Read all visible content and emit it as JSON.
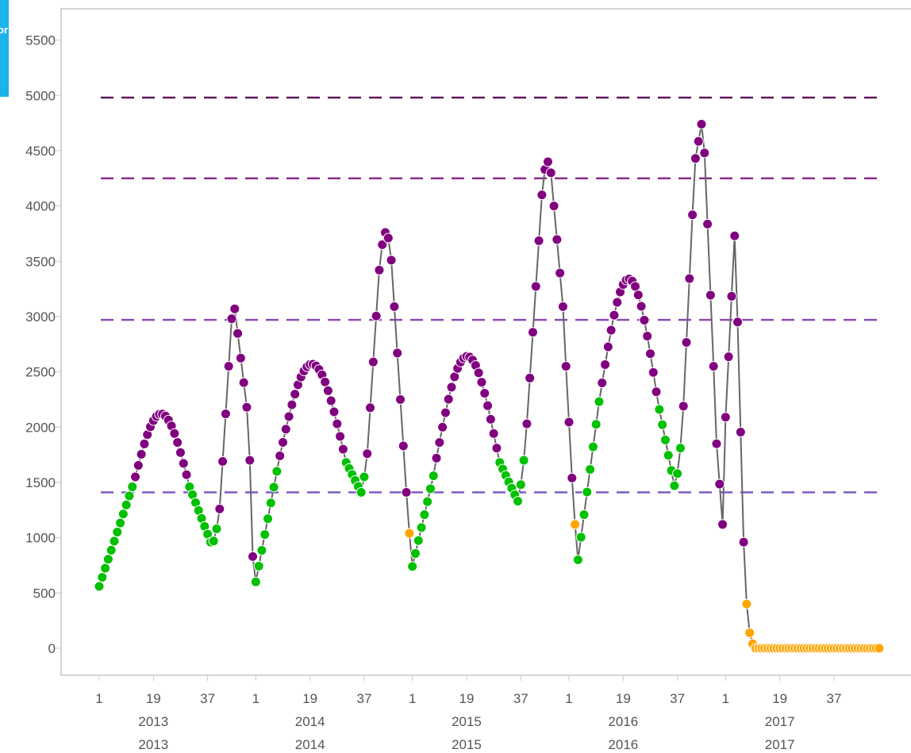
{
  "tab": {
    "text": "or"
  },
  "chart_data": {
    "type": "line",
    "title": "",
    "xlabel": "",
    "ylabel": "",
    "ylim": [
      -250,
      5750
    ],
    "y_ticks": [
      0,
      500,
      1000,
      1500,
      2000,
      2500,
      3000,
      3500,
      4000,
      4500,
      5000,
      5500
    ],
    "x_week_labels": [
      "1",
      "19",
      "37",
      "1",
      "19",
      "37",
      "1",
      "19",
      "37",
      "1",
      "19",
      "37",
      "1",
      "19",
      "37"
    ],
    "x_year_labels": [
      "2013",
      "2014",
      "2015",
      "2016",
      "2017"
    ],
    "years": [
      2013,
      2014,
      2015,
      2016,
      2017
    ],
    "weeks_per_year": 52,
    "threshold_lines": [
      {
        "value": 4980,
        "color": "#5c1a5c"
      },
      {
        "value": 4250,
        "color": "#8a2e8a"
      },
      {
        "value": 2970,
        "color": "#8d4bb0"
      },
      {
        "value": 1410,
        "color": "#7b5cc7"
      }
    ],
    "status_colors": {
      "green": "#00c000",
      "purple": "#800080",
      "orange": "#ffa500"
    },
    "line_color": "#666666",
    "segments": [
      {
        "from": 1,
        "to": 12,
        "y0": 560,
        "y1": 1460,
        "shape": "linear",
        "status": "green"
      },
      {
        "from": 13,
        "to": 30,
        "y0": 1550,
        "y1": 1570,
        "shape": "arc",
        "peak": 2120,
        "status": "purple"
      },
      {
        "from": 31,
        "to": 38,
        "y0": 1460,
        "y1": 960,
        "shape": "linear",
        "status": "green"
      },
      {
        "from": 39,
        "to": 40,
        "y0": 970,
        "y1": 1080,
        "shape": "linear",
        "status": "green"
      },
      {
        "from": 41,
        "to": 45,
        "y0": 1260,
        "y1": 2980,
        "shape": "linear",
        "status": "purple"
      },
      {
        "from": 46,
        "to": 50,
        "y0": 3070,
        "y1": 2180,
        "shape": "linear",
        "status": "purple"
      },
      {
        "from": 51,
        "to": 52,
        "y0": 1700,
        "y1": 830,
        "shape": "linear",
        "status": "purple"
      },
      {
        "from": 53,
        "to": 60,
        "y0": 600,
        "y1": 1600,
        "shape": "linear",
        "status": "green"
      },
      {
        "from": 61,
        "to": 82,
        "y0": 1740,
        "y1": 1800,
        "shape": "arc",
        "peak": 2570,
        "status": "purple"
      },
      {
        "from": 83,
        "to": 88,
        "y0": 1680,
        "y1": 1410,
        "shape": "linear",
        "status": "green"
      },
      {
        "from": 89,
        "to": 89,
        "y0": 1550,
        "y1": 1550,
        "shape": "linear",
        "status": "green"
      },
      {
        "from": 90,
        "to": 94,
        "y0": 1760,
        "y1": 3420,
        "shape": "linear",
        "status": "purple"
      },
      {
        "from": 95,
        "to": 97,
        "y0": 3650,
        "y1": 3710,
        "shape": "arc",
        "peak": 3760,
        "status": "purple"
      },
      {
        "from": 98,
        "to": 103,
        "y0": 3510,
        "y1": 1410,
        "shape": "linear",
        "status": "purple"
      },
      {
        "from": 104,
        "to": 104,
        "y0": 1040,
        "y1": 1040,
        "shape": "linear",
        "status": "orange"
      },
      {
        "from": 105,
        "to": 112,
        "y0": 740,
        "y1": 1560,
        "shape": "linear",
        "status": "green"
      },
      {
        "from": 113,
        "to": 133,
        "y0": 1720,
        "y1": 1810,
        "shape": "arc",
        "peak": 2640,
        "status": "purple"
      },
      {
        "from": 134,
        "to": 140,
        "y0": 1680,
        "y1": 1330,
        "shape": "linear",
        "status": "green"
      },
      {
        "from": 141,
        "to": 142,
        "y0": 1480,
        "y1": 1700,
        "shape": "linear",
        "status": "green"
      },
      {
        "from": 143,
        "to": 148,
        "y0": 2030,
        "y1": 4100,
        "shape": "linear",
        "status": "purple"
      },
      {
        "from": 149,
        "to": 151,
        "y0": 4330,
        "y1": 4300,
        "shape": "arc",
        "peak": 4400,
        "status": "purple"
      },
      {
        "from": 152,
        "to": 155,
        "y0": 4000,
        "y1": 3090,
        "shape": "linear",
        "status": "purple"
      },
      {
        "from": 156,
        "to": 158,
        "y0": 2550,
        "y1": 1540,
        "shape": "linear",
        "status": "purple"
      },
      {
        "from": 159,
        "to": 159,
        "y0": 1120,
        "y1": 1120,
        "shape": "linear",
        "status": "orange"
      },
      {
        "from": 160,
        "to": 167,
        "y0": 800,
        "y1": 2230,
        "shape": "linear",
        "status": "green"
      },
      {
        "from": 168,
        "to": 186,
        "y0": 2400,
        "y1": 2320,
        "shape": "arc",
        "peak": 3340,
        "status": "purple"
      },
      {
        "from": 187,
        "to": 192,
        "y0": 2160,
        "y1": 1470,
        "shape": "linear",
        "status": "green"
      },
      {
        "from": 193,
        "to": 194,
        "y0": 1580,
        "y1": 1810,
        "shape": "linear",
        "status": "green"
      },
      {
        "from": 195,
        "to": 198,
        "y0": 2190,
        "y1": 3920,
        "shape": "linear",
        "status": "purple"
      },
      {
        "from": 199,
        "to": 201,
        "y0": 4430,
        "y1": 4740,
        "shape": "linear",
        "status": "purple"
      },
      {
        "from": 202,
        "to": 205,
        "y0": 4480,
        "y1": 2550,
        "shape": "linear",
        "status": "purple"
      },
      {
        "from": 206,
        "to": 208,
        "y0": 1850,
        "y1": 1120,
        "shape": "linear",
        "status": "purple"
      },
      {
        "from": 209,
        "to": 212,
        "y0": 2090,
        "y1": 3730,
        "shape": "linear",
        "status": "purple"
      },
      {
        "from": 213,
        "to": 215,
        "y0": 2950,
        "y1": 960,
        "shape": "linear",
        "status": "purple"
      },
      {
        "from": 216,
        "to": 217,
        "y0": 400,
        "y1": 140,
        "shape": "linear",
        "status": "orange"
      },
      {
        "from": 218,
        "to": 218,
        "y0": 40,
        "y1": 40,
        "shape": "linear",
        "status": "orange"
      },
      {
        "from": 219,
        "to": 260,
        "y0": 0,
        "y1": 0,
        "shape": "linear",
        "status": "orange"
      }
    ]
  }
}
